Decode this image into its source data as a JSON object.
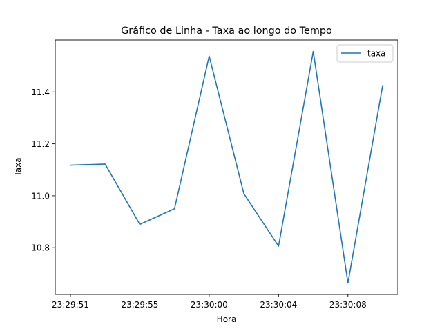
{
  "chart_data": {
    "type": "line",
    "title": "Gráfico de Linha - Taxa ao longo do Tempo",
    "xlabel": "Hora",
    "ylabel": "Taxa",
    "x": [
      "23:29:51",
      "23:29:53",
      "23:29:55",
      "23:29:57",
      "23:30:00",
      "23:30:02",
      "23:30:04",
      "23:30:06",
      "23:30:08",
      "23:30:10"
    ],
    "series": [
      {
        "name": "taxa",
        "color": "#1f77b4",
        "values": [
          11.118,
          11.122,
          10.89,
          10.95,
          11.538,
          11.008,
          10.806,
          11.556,
          10.664,
          11.424
        ]
      }
    ],
    "xticks": [
      "23:29:51",
      "23:29:55",
      "23:30:00",
      "23:30:04",
      "23:30:08"
    ],
    "yticks": [
      10.8,
      11.0,
      11.2,
      11.4
    ],
    "ylim": [
      10.62,
      11.6
    ],
    "legend_position": "upper right",
    "grid": false
  }
}
